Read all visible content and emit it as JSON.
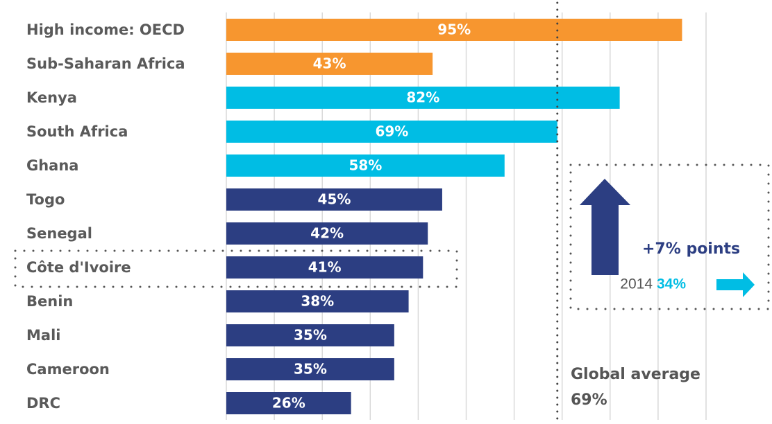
{
  "chart_data": {
    "type": "hbar",
    "categories": [
      "High income: OECD",
      "Sub-Saharan Africa",
      "Kenya",
      "South Africa",
      "Ghana",
      "Togo",
      "Senegal",
      "Côte d'Ivoire",
      "Benin",
      "Mali",
      "Cameroon",
      "DRC"
    ],
    "values": [
      95,
      43,
      82,
      69,
      58,
      45,
      42,
      41,
      38,
      35,
      35,
      26
    ],
    "value_labels": [
      "95%",
      "43%",
      "82%",
      "69%",
      "58%",
      "45%",
      "42%",
      "41%",
      "38%",
      "35%",
      "35%",
      "26%"
    ],
    "colors": [
      "#f7962f",
      "#f7962f",
      "#00bde4",
      "#00bde4",
      "#00bde4",
      "#2c3e82",
      "#2c3e82",
      "#2c3e82",
      "#2c3e82",
      "#2c3e82",
      "#2c3e82",
      "#2c3e82"
    ],
    "xlim": [
      0,
      100
    ],
    "xticks": [
      0,
      10,
      20,
      30,
      40,
      50,
      60,
      70,
      80,
      90,
      100
    ],
    "grid": true,
    "reference_line": {
      "value": 69,
      "label": "Global average",
      "value_label": "69%"
    },
    "annotations": {
      "change": "+7% points",
      "year": "2014",
      "year_value": "34%"
    }
  }
}
